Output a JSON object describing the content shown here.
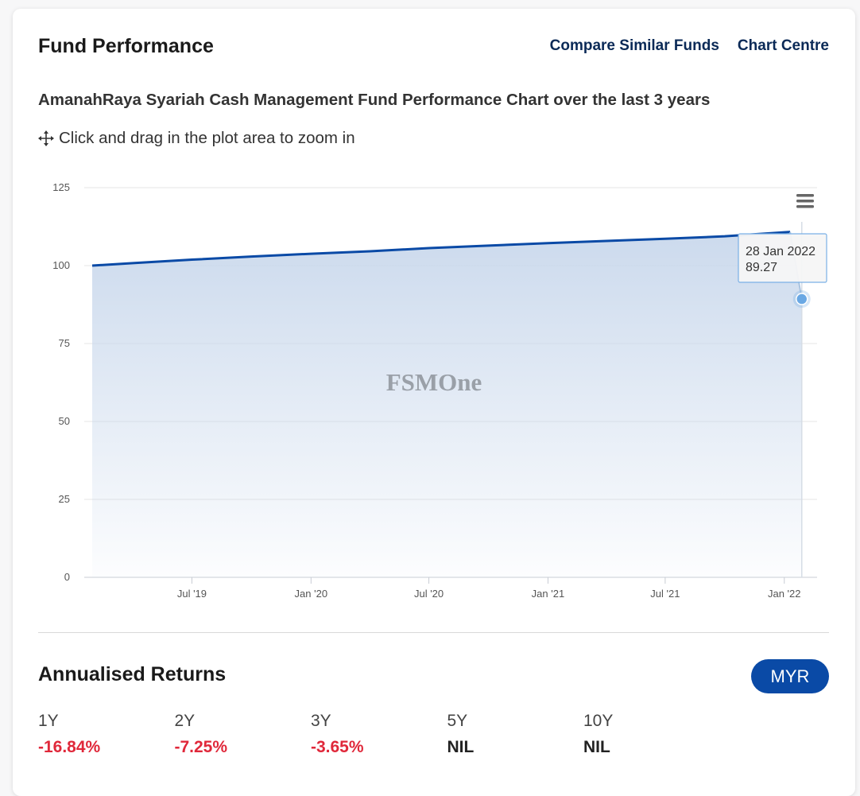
{
  "header": {
    "title": "Fund Performance",
    "links": [
      "Compare Similar Funds",
      "Chart Centre"
    ]
  },
  "chart_heading": "AmanahRaya Syariah Cash Management Fund Performance Chart over the last 3 years",
  "zoom_hint": "Click and drag in the plot area to zoom in",
  "watermark": "FSMOne",
  "tooltip": {
    "date": "28 Jan 2022",
    "value": "89.27"
  },
  "colors": {
    "line": "#0a4aa6",
    "area_top": "#c9d8ec",
    "link": "#0b2a57",
    "negative": "#e0283a",
    "pill": "#0a4aa6"
  },
  "chart_data": {
    "type": "area",
    "title": "",
    "xlabel": "",
    "ylabel": "",
    "ylim": [
      0,
      125
    ],
    "y_ticks": [
      0,
      25,
      50,
      75,
      100,
      125
    ],
    "x_ticks": [
      {
        "label": "Jul '19",
        "date": "2019-07-01"
      },
      {
        "label": "Jan '20",
        "date": "2020-01-01"
      },
      {
        "label": "Jul '20",
        "date": "2020-07-01"
      },
      {
        "label": "Jan '21",
        "date": "2021-01-01"
      },
      {
        "label": "Jul '21",
        "date": "2021-07-01"
      },
      {
        "label": "Jan '22",
        "date": "2022-01-01"
      }
    ],
    "xlim": [
      "2019-01-28",
      "2022-02-28"
    ],
    "grid": true,
    "series": [
      {
        "points": [
          {
            "x": "2019-01-28",
            "y": 100.0
          },
          {
            "x": "2019-04-01",
            "y": 100.8
          },
          {
            "x": "2019-07-01",
            "y": 101.9
          },
          {
            "x": "2019-10-01",
            "y": 102.9
          },
          {
            "x": "2020-01-01",
            "y": 103.8
          },
          {
            "x": "2020-04-01",
            "y": 104.6
          },
          {
            "x": "2020-07-01",
            "y": 105.6
          },
          {
            "x": "2020-10-01",
            "y": 106.4
          },
          {
            "x": "2021-01-01",
            "y": 107.2
          },
          {
            "x": "2021-04-01",
            "y": 107.9
          },
          {
            "x": "2021-07-01",
            "y": 108.6
          },
          {
            "x": "2021-10-01",
            "y": 109.4
          },
          {
            "x": "2022-01-10",
            "y": 110.8
          },
          {
            "x": "2022-01-28",
            "y": 89.27
          }
        ]
      }
    ]
  },
  "returns": {
    "title": "Annualised Returns",
    "currency": "MYR",
    "items": [
      {
        "period": "1Y",
        "value": "-16.84%",
        "negative": true
      },
      {
        "period": "2Y",
        "value": "-7.25%",
        "negative": true
      },
      {
        "period": "3Y",
        "value": "-3.65%",
        "negative": true
      },
      {
        "period": "5Y",
        "value": "NIL",
        "negative": false
      },
      {
        "period": "10Y",
        "value": "NIL",
        "negative": false
      }
    ]
  }
}
